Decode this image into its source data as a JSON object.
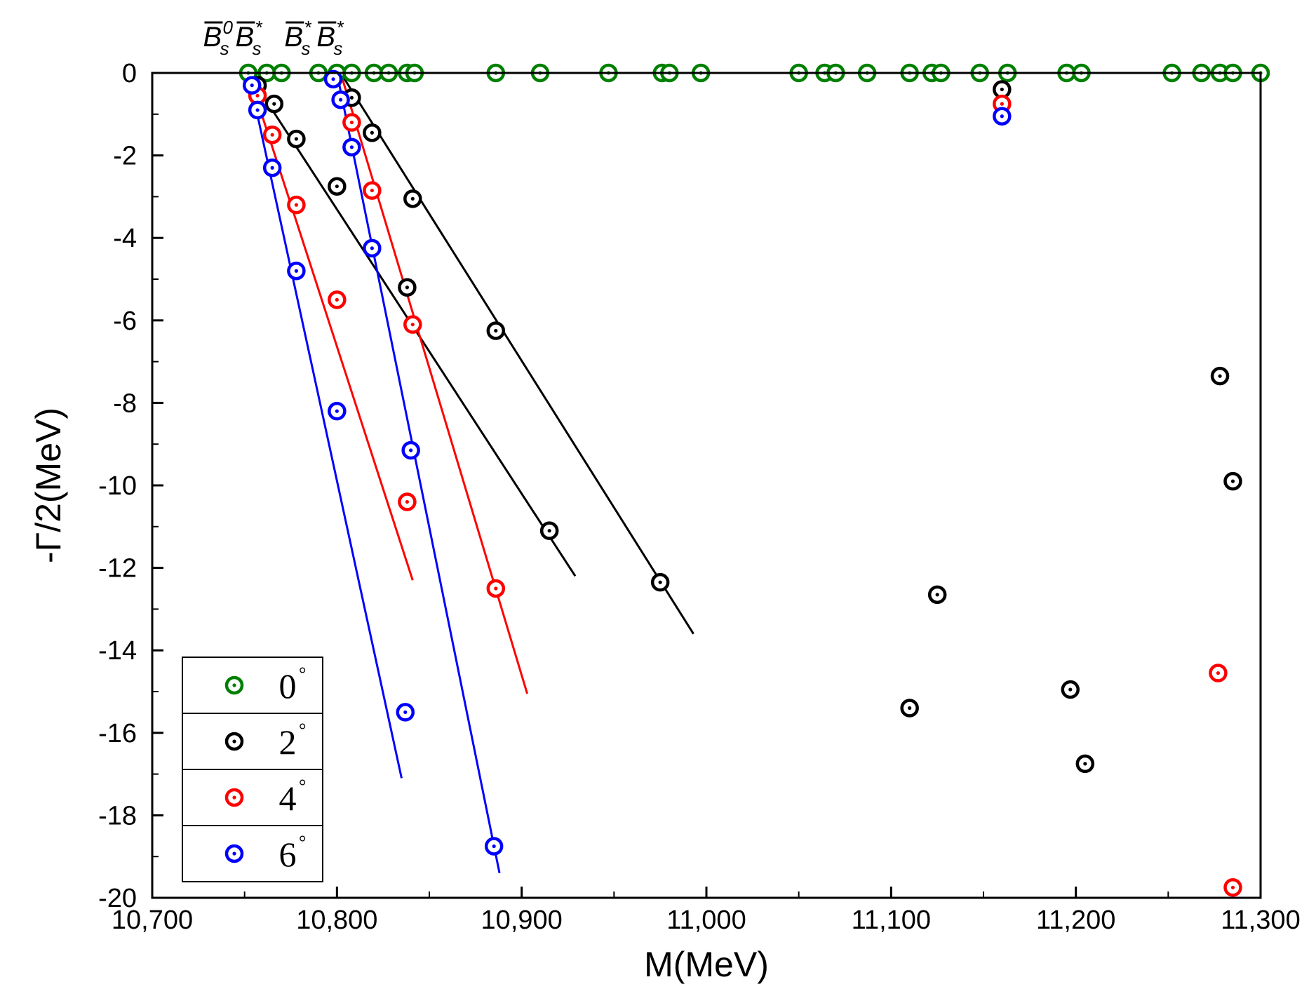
{
  "chart_data": {
    "type": "scatter",
    "title": "",
    "xlabel": "M(MeV)",
    "ylabel": "-Γ/2(MeV)",
    "xlim": [
      10700,
      11300
    ],
    "ylim": [
      -20,
      0
    ],
    "xticks": [
      10700,
      10800,
      10900,
      11000,
      11100,
      11200,
      11300
    ],
    "xtick_labels": [
      "10,700",
      "10,800",
      "10,900",
      "11,000",
      "11,100",
      "11,200",
      "11,300"
    ],
    "yticks": [
      0,
      -2,
      -4,
      -6,
      -8,
      -10,
      -12,
      -14,
      -16,
      -18,
      -20
    ],
    "ytick_labels": [
      "0",
      "-2",
      "-4",
      "-6",
      "-8",
      "-10",
      "-12",
      "-14",
      "-16",
      "-18",
      "-20"
    ],
    "grid": false,
    "legend_position": "bottom-left",
    "thresholds": [
      {
        "name": "Bs0 Bs*",
        "x": 10756,
        "parts": [
          {
            "base": "B",
            "bar": true,
            "sub": "s",
            "sup": "0"
          },
          {
            "base": "B",
            "bar": true,
            "sub": "s",
            "sup": "*"
          }
        ]
      },
      {
        "name": "Bs* Bs*",
        "x": 10800,
        "parts": [
          {
            "base": "B",
            "bar": true,
            "sub": "s",
            "sup": "*"
          },
          {
            "base": "B",
            "bar": true,
            "sub": "s",
            "sup": "*"
          }
        ]
      }
    ],
    "series": [
      {
        "name": "0°",
        "label": "0",
        "sup": "°",
        "color": "#008000",
        "points": [
          [
            10752,
            0
          ],
          [
            10762,
            0
          ],
          [
            10770,
            0
          ],
          [
            10790,
            0
          ],
          [
            10800,
            0
          ],
          [
            10808,
            0
          ],
          [
            10820,
            0
          ],
          [
            10828,
            0
          ],
          [
            10838,
            0
          ],
          [
            10842,
            0
          ],
          [
            10886,
            0
          ],
          [
            10910,
            0
          ],
          [
            10947,
            0
          ],
          [
            10976,
            0
          ],
          [
            10980,
            0
          ],
          [
            10997,
            0
          ],
          [
            11050,
            0
          ],
          [
            11064,
            0
          ],
          [
            11070,
            0
          ],
          [
            11087,
            0
          ],
          [
            11110,
            0
          ],
          [
            11122,
            0
          ],
          [
            11127,
            0
          ],
          [
            11148,
            0
          ],
          [
            11163,
            0
          ],
          [
            11195,
            0
          ],
          [
            11203,
            0
          ],
          [
            11252,
            0
          ],
          [
            11268,
            0
          ],
          [
            11278,
            0
          ],
          [
            11285,
            0
          ],
          [
            11300,
            0
          ]
        ],
        "lines": []
      },
      {
        "name": "2°",
        "label": "2",
        "sup": "°",
        "color": "#000000",
        "points": [
          [
            10757,
            -0.3
          ],
          [
            10766,
            -0.75
          ],
          [
            10778,
            -1.6
          ],
          [
            10800,
            -2.75
          ],
          [
            10838,
            -5.2
          ],
          [
            10915,
            -11.1
          ],
          [
            10808,
            -0.6
          ],
          [
            10819,
            -1.45
          ],
          [
            10841,
            -3.05
          ],
          [
            10886,
            -6.25
          ],
          [
            10975,
            -12.35
          ],
          [
            11160,
            -0.4
          ],
          [
            11278,
            -7.35
          ],
          [
            11285,
            -9.9
          ],
          [
            11125,
            -12.65
          ],
          [
            11110,
            -15.4
          ],
          [
            11197,
            -14.95
          ],
          [
            11205,
            -16.75
          ]
        ],
        "lines": [
          [
            [
              10752,
              0
            ],
            [
              10929,
              -12.2
            ]
          ],
          [
            [
              10802,
              0
            ],
            [
              10993,
              -13.6
            ]
          ]
        ]
      },
      {
        "name": "4°",
        "label": "4",
        "sup": "°",
        "color": "#ff0000",
        "points": [
          [
            10757,
            -0.55
          ],
          [
            10765,
            -1.5
          ],
          [
            10778,
            -3.2
          ],
          [
            10800,
            -5.5
          ],
          [
            10838,
            -10.4
          ],
          [
            10808,
            -1.2
          ],
          [
            10819,
            -2.85
          ],
          [
            10841,
            -6.1
          ],
          [
            10886,
            -12.5
          ],
          [
            11160,
            -0.75
          ],
          [
            11277,
            -14.55
          ],
          [
            11285,
            -19.75
          ]
        ],
        "lines": [
          [
            [
              10752,
              0
            ],
            [
              10841,
              -12.3
            ]
          ],
          [
            [
              10802,
              0
            ],
            [
              10903,
              -15.05
            ]
          ]
        ]
      },
      {
        "name": "6°",
        "label": "6",
        "sup": "°",
        "color": "#0000ff",
        "points": [
          [
            10754,
            -0.3
          ],
          [
            10757,
            -0.9
          ],
          [
            10765,
            -2.3
          ],
          [
            10778,
            -4.8
          ],
          [
            10800,
            -8.2
          ],
          [
            10837,
            -15.5
          ],
          [
            10798,
            -0.15
          ],
          [
            10802,
            -0.65
          ],
          [
            10808,
            -1.8
          ],
          [
            10819,
            -4.25
          ],
          [
            10840,
            -9.15
          ],
          [
            10885,
            -18.75
          ],
          [
            11160,
            -1.05
          ]
        ],
        "lines": [
          [
            [
              10752,
              0
            ],
            [
              10835,
              -17.1
            ]
          ],
          [
            [
              10800,
              0
            ],
            [
              10888,
              -19.4
            ]
          ]
        ]
      }
    ]
  }
}
